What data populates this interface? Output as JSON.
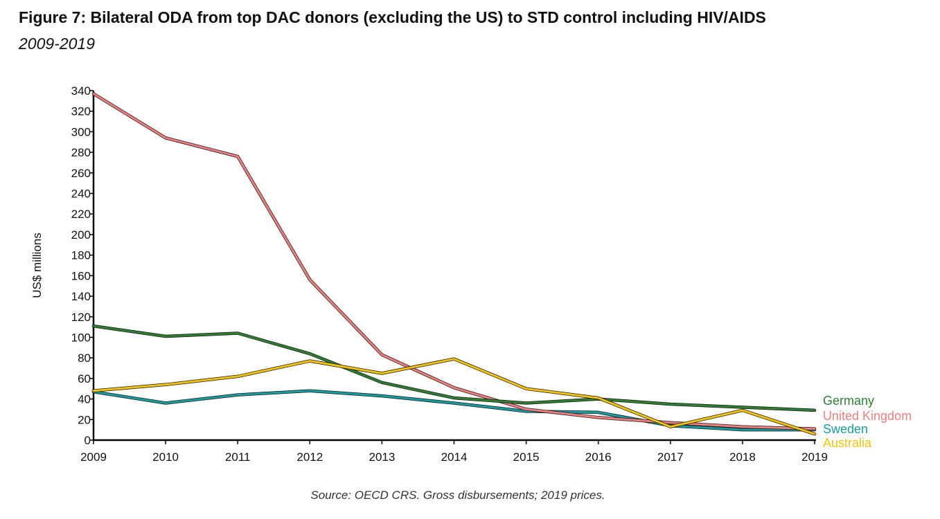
{
  "header": {
    "title": "Figure 7: Bilateral ODA from top DAC donors (excluding the US) to STD control including HIV/AIDS",
    "subtitle": "2009-2019"
  },
  "footer": {
    "source": "Source: OECD CRS. Gross disbursements; 2019 prices."
  },
  "chart_data": {
    "type": "line",
    "ylabel": "US$ millions",
    "xlabel": "",
    "ylim": [
      0,
      340
    ],
    "yticks": [
      0,
      20,
      40,
      60,
      80,
      100,
      120,
      140,
      160,
      180,
      200,
      220,
      240,
      260,
      280,
      300,
      320,
      340
    ],
    "categories": [
      "2009",
      "2010",
      "2011",
      "2012",
      "2013",
      "2014",
      "2015",
      "2016",
      "2017",
      "2018",
      "2019"
    ],
    "grid": false,
    "legend_placement": "right end of lines",
    "series": [
      {
        "name": "Sweden",
        "color": "#1a9ba0",
        "values": [
          47,
          36,
          44,
          48,
          43,
          36,
          28,
          27,
          14,
          10,
          10
        ]
      },
      {
        "name": "United Kingdom",
        "color": "#ee7f7f",
        "values": [
          337,
          294,
          276,
          156,
          83,
          51,
          30,
          22,
          17,
          13,
          11
        ]
      },
      {
        "name": "Germany",
        "color": "#2e7d32",
        "values": [
          111,
          101,
          104,
          84,
          56,
          41,
          36,
          40,
          35,
          32,
          29
        ]
      },
      {
        "name": "Australia",
        "color": "#f2c40f",
        "values": [
          48,
          54,
          62,
          77,
          65,
          79,
          50,
          41,
          13,
          29,
          6
        ]
      }
    ],
    "legend_order": [
      "Germany",
      "United Kingdom",
      "Sweden",
      "Australia"
    ]
  }
}
